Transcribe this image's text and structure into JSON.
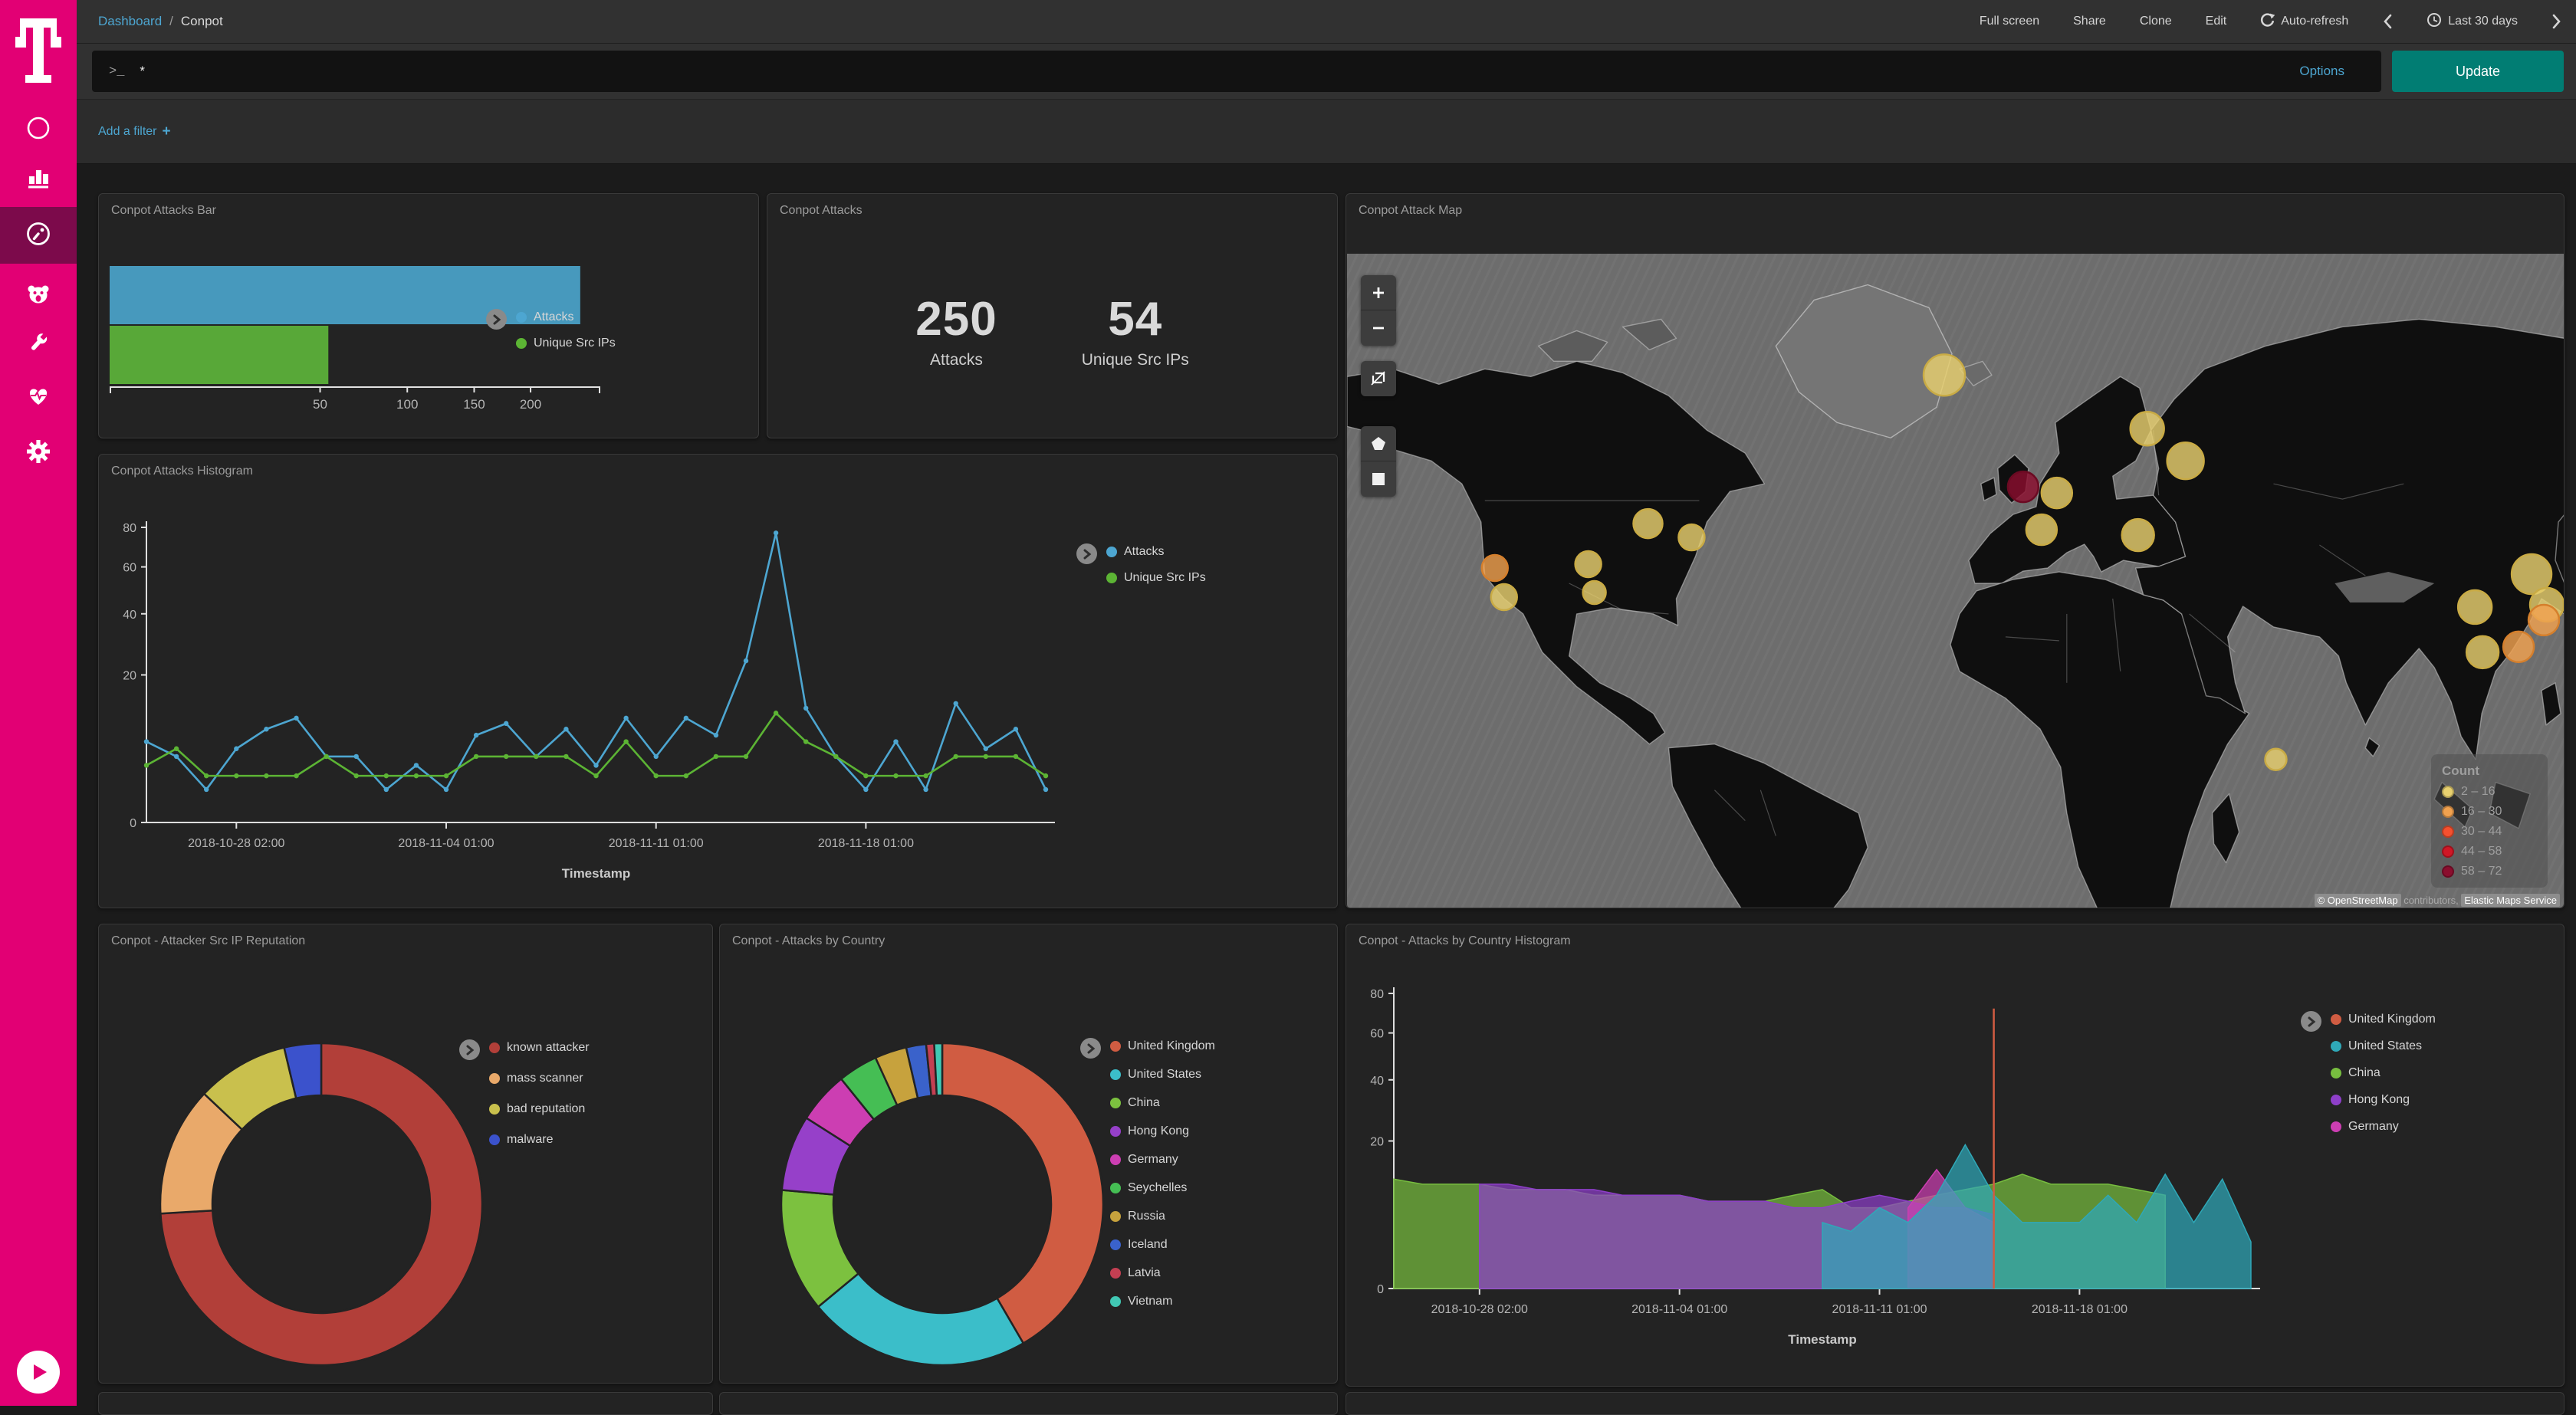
{
  "sidebar": {
    "icons": [
      {
        "name": "compass"
      },
      {
        "name": "bar-chart"
      },
      {
        "name": "gauge",
        "active": true
      },
      {
        "name": "bear"
      },
      {
        "name": "wrench"
      },
      {
        "name": "heartbeat"
      },
      {
        "name": "gear"
      }
    ],
    "brand_color": "#E20074"
  },
  "topbar": {
    "breadcrumb": {
      "link": "Dashboard",
      "separator": "/",
      "current": "Conpot"
    },
    "menu": [
      "Full screen",
      "Share",
      "Clone",
      "Edit"
    ],
    "auto_refresh": "Auto-refresh",
    "time_range": "Last 30 days"
  },
  "query": {
    "prompt": ">_",
    "value": "*",
    "options": "Options",
    "update": "Update"
  },
  "filter_bar": {
    "label": "Add a filter",
    "plus": "+"
  },
  "chart_data": [
    {
      "type": "bar",
      "title": "Conpot Attacks Bar",
      "orientation": "horizontal",
      "scale": "sqrt",
      "categories": [
        "Attacks",
        "Unique Src IPs"
      ],
      "values": [
        250,
        54
      ],
      "colors": [
        "#4799bd",
        "#58a838"
      ],
      "xticks": [
        50,
        100,
        150,
        200
      ],
      "xmax": 260,
      "legend": [
        {
          "label": "Attacks",
          "color": "#4da6d1"
        },
        {
          "label": "Unique Src IPs",
          "color": "#5cb434"
        }
      ]
    },
    {
      "type": "metric",
      "title": "Conpot Attacks",
      "metrics": [
        {
          "value": "250",
          "label": "Attacks"
        },
        {
          "value": "54",
          "label": "Unique Src IPs"
        }
      ]
    },
    {
      "type": "map",
      "title": "Conpot Attack Map",
      "controls": [
        "zoom-in",
        "zoom-out",
        "fit",
        "draw-polygon",
        "draw-rectangle"
      ],
      "legend": {
        "title": "Count",
        "items": [
          {
            "range": "2 – 16",
            "color": "#e8d06f",
            "stroke": "#c9ab45"
          },
          {
            "range": "16 – 30",
            "color": "#f0a14f",
            "stroke": "#d57f2c"
          },
          {
            "range": "30 – 44",
            "color": "#f4502f",
            "stroke": "#c93a1e"
          },
          {
            "range": "44 – 58",
            "color": "#d01726",
            "stroke": "#a31018"
          },
          {
            "range": "58 – 72",
            "color": "#8b0e2e",
            "stroke": "#6b0a22"
          }
        ]
      },
      "attribution": {
        "prefix": "© OpenStreetMap",
        "middle": " contributors, ",
        "service": "Elastic Maps Service"
      },
      "bubbles": [
        {
          "x": 780,
          "y": 158,
          "r": 27,
          "bucket": 0
        },
        {
          "x": 1045,
          "y": 228,
          "r": 22,
          "bucket": 0
        },
        {
          "x": 1095,
          "y": 270,
          "r": 24,
          "bucket": 0
        },
        {
          "x": 883,
          "y": 304,
          "r": 20,
          "bucket": 4
        },
        {
          "x": 927,
          "y": 312,
          "r": 20,
          "bucket": 0
        },
        {
          "x": 907,
          "y": 360,
          "r": 20,
          "bucket": 0
        },
        {
          "x": 1033,
          "y": 367,
          "r": 21,
          "bucket": 0
        },
        {
          "x": 193,
          "y": 410,
          "r": 17,
          "bucket": 1
        },
        {
          "x": 205,
          "y": 448,
          "r": 17,
          "bucket": 0
        },
        {
          "x": 315,
          "y": 405,
          "r": 17,
          "bucket": 0
        },
        {
          "x": 323,
          "y": 442,
          "r": 15,
          "bucket": 0
        },
        {
          "x": 393,
          "y": 352,
          "r": 19,
          "bucket": 0
        },
        {
          "x": 450,
          "y": 370,
          "r": 17,
          "bucket": 0
        },
        {
          "x": 1547,
          "y": 418,
          "r": 26,
          "bucket": 0
        },
        {
          "x": 1473,
          "y": 461,
          "r": 22,
          "bucket": 0
        },
        {
          "x": 1567,
          "y": 458,
          "r": 22,
          "bucket": 0
        },
        {
          "x": 1563,
          "y": 478,
          "r": 20,
          "bucket": 1
        },
        {
          "x": 1530,
          "y": 513,
          "r": 20,
          "bucket": 1
        },
        {
          "x": 1483,
          "y": 520,
          "r": 21,
          "bucket": 0
        },
        {
          "x": 1213,
          "y": 660,
          "r": 14,
          "bucket": 0
        }
      ]
    },
    {
      "type": "line",
      "title": "Conpot Attacks Histogram",
      "xlabel": "Timestamp",
      "ymax": 80,
      "yticks": [
        0,
        20,
        40,
        60,
        80
      ],
      "scale": "sqrt",
      "xtick_labels": [
        "2018-10-28 02:00",
        "2018-11-04 01:00",
        "2018-11-11 01:00",
        "2018-11-18 01:00"
      ],
      "xtick_idx": [
        3,
        10,
        17,
        24
      ],
      "series": [
        {
          "name": "Attacks",
          "color": "#4da6d1",
          "values": [
            6,
            4,
            1,
            5,
            8,
            10,
            4,
            4,
            1,
            3,
            1,
            7,
            9,
            4,
            8,
            3,
            10,
            4,
            10,
            7,
            24,
            77,
            12,
            4,
            1,
            6,
            1,
            13,
            5,
            8,
            1
          ]
        },
        {
          "name": "Unique Src IPs",
          "color": "#5cb434",
          "values": [
            3,
            5,
            2,
            2,
            2,
            2,
            4,
            2,
            2,
            2,
            2,
            4,
            4,
            4,
            4,
            2,
            6,
            2,
            2,
            4,
            4,
            11,
            6,
            4,
            2,
            2,
            2,
            4,
            4,
            4,
            2
          ]
        }
      ]
    },
    {
      "type": "pie",
      "title": "Conpot - Attacker Src IP Reputation",
      "slices": [
        {
          "label": "known attacker",
          "value": 40,
          "color": "#b23f39"
        },
        {
          "label": "mass scanner",
          "value": 7,
          "color": "#e9a96a"
        },
        {
          "label": "bad reputation",
          "value": 5,
          "color": "#c9c04d"
        },
        {
          "label": "malware",
          "value": 2,
          "color": "#3b52cc"
        }
      ]
    },
    {
      "type": "pie",
      "title": "Conpot - Attacks by Country",
      "slices": [
        {
          "label": "United Kingdom",
          "value": 104,
          "color": "#d05c42"
        },
        {
          "label": "United States",
          "value": 56,
          "color": "#3bbec9"
        },
        {
          "label": "China",
          "value": 31,
          "color": "#7cc13f"
        },
        {
          "label": "Hong Kong",
          "value": 19,
          "color": "#9640c9"
        },
        {
          "label": "Germany",
          "value": 13,
          "color": "#cc3eb2"
        },
        {
          "label": "Seychelles",
          "value": 10,
          "color": "#45be54"
        },
        {
          "label": "Russia",
          "value": 8,
          "color": "#c7a23d"
        },
        {
          "label": "Iceland",
          "value": 5,
          "color": "#3a62cb"
        },
        {
          "label": "Latvia",
          "value": 2,
          "color": "#c43f52"
        },
        {
          "label": "Vietnam",
          "value": 2,
          "color": "#41c8b4"
        }
      ]
    },
    {
      "type": "area",
      "title": "Conpot - Attacks by Country Histogram",
      "xlabel": "Timestamp",
      "ymax": 80,
      "yticks": [
        0,
        20,
        40,
        60,
        80
      ],
      "scale": "sqrt",
      "xtick_labels": [
        "2018-10-28 02:00",
        "2018-11-04 01:00",
        "2018-11-11 01:00",
        "2018-11-18 01:00"
      ],
      "xtick_idx": [
        3,
        10,
        17,
        24
      ],
      "draw_order": [
        2,
        3,
        4,
        1,
        0
      ],
      "series": [
        {
          "name": "United Kingdom",
          "color": "#d05c42",
          "values": [
            0,
            0,
            0,
            0,
            0,
            0,
            0,
            0,
            0,
            0,
            0,
            0,
            0,
            0,
            0,
            0,
            0,
            0,
            0,
            0,
            0,
            72,
            0,
            0,
            0,
            0,
            0,
            0,
            0,
            0,
            0
          ]
        },
        {
          "name": "United States",
          "color": "#2fa8b8",
          "values": [
            0,
            0,
            0,
            0,
            0,
            0,
            0,
            0,
            0,
            0,
            0,
            0,
            0,
            0,
            0,
            4,
            3,
            6,
            4,
            8,
            19,
            8,
            4,
            4,
            4,
            8,
            4,
            12,
            4,
            11,
            2
          ]
        },
        {
          "name": "China",
          "color": "#77bd3f",
          "values": [
            11,
            10,
            10,
            10,
            9,
            9,
            9,
            8,
            8,
            8,
            8,
            7,
            7,
            7,
            8,
            9,
            6,
            6,
            7,
            8,
            9,
            10,
            12,
            10,
            10,
            10,
            9,
            8,
            0,
            0,
            0
          ]
        },
        {
          "name": "Hong Kong",
          "color": "#8e3fc9",
          "values": [
            0,
            0,
            0,
            10,
            10,
            9,
            9,
            9,
            8,
            8,
            8,
            7,
            7,
            7,
            6,
            6,
            7,
            8,
            7,
            6,
            6,
            5,
            0,
            0,
            0,
            0,
            0,
            0,
            0,
            0,
            0
          ]
        },
        {
          "name": "Germany",
          "color": "#cc3eb2",
          "values": [
            0,
            0,
            0,
            0,
            0,
            0,
            0,
            0,
            0,
            0,
            0,
            0,
            0,
            0,
            0,
            0,
            0,
            0,
            6,
            13,
            6,
            4,
            0,
            0,
            0,
            0,
            0,
            0,
            0,
            0,
            0
          ]
        }
      ]
    }
  ]
}
